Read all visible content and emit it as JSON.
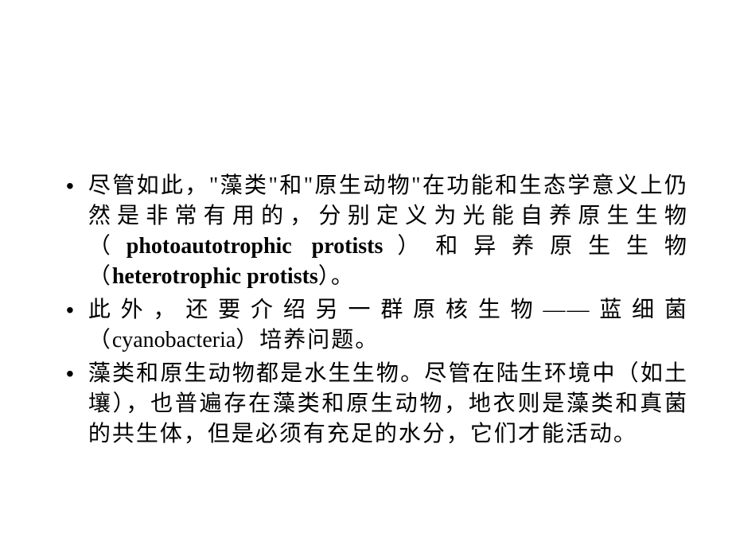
{
  "slide": {
    "background_color": "#ffffff",
    "text_color": "#000000",
    "font_size": 28,
    "line_height": 38,
    "bullets": [
      {
        "pre": "尽管如此，\"藻类\"和\"原生动物\"在功能和生态学意义上仍然是非常有用的，分别定义为光能自养原生生物（",
        "bold1": "photoautotrophic  protists",
        "mid": "）和异养原生生物（",
        "bold2": "heterotrophic protists",
        "post": "）。"
      },
      {
        "pre": "此外，还要介绍另一群原核生物——蓝细菌（",
        "latin": "cyanobacteria",
        "post": "）培养问题。"
      },
      {
        "text": "藻类和原生动物都是水生生物。尽管在陆生环境中（如土壤），也普遍存在藻类和原生动物，地衣则是藻类和真菌的共生体，但是必须有充足的水分，它们才能活动。"
      }
    ]
  }
}
